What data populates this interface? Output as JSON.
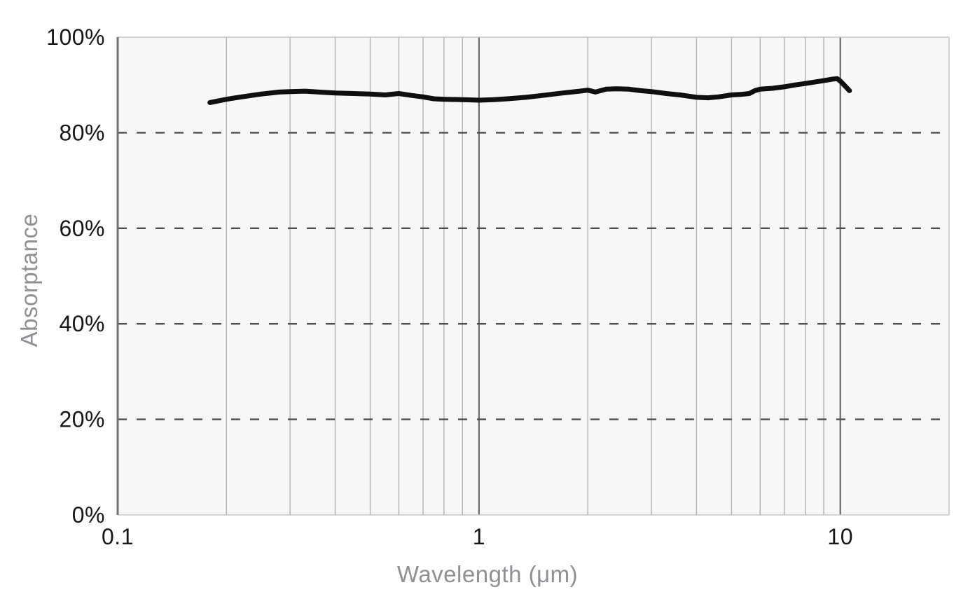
{
  "chart_data": {
    "type": "line",
    "title": "",
    "xlabel": "Wavelength (μm)",
    "ylabel": "Absorptance",
    "x_scale": "log",
    "xlim": [
      0.1,
      20
    ],
    "ylim": [
      0,
      100
    ],
    "grid": true,
    "legend": "none",
    "x_ticks": [
      {
        "value": 0.1,
        "label": "0.1"
      },
      {
        "value": 1,
        "label": "1"
      },
      {
        "value": 10,
        "label": "10"
      }
    ],
    "y_ticks": [
      {
        "value": 0,
        "label": "0%"
      },
      {
        "value": 20,
        "label": "20%"
      },
      {
        "value": 40,
        "label": "40%"
      },
      {
        "value": 60,
        "label": "60%"
      },
      {
        "value": 80,
        "label": "80%"
      },
      {
        "value": 100,
        "label": "100%"
      }
    ],
    "x_gridlines_minor": [
      0.2,
      0.3,
      0.4,
      0.5,
      0.6,
      0.7,
      0.8,
      0.9,
      2,
      3,
      4,
      5,
      6,
      7,
      8,
      9
    ],
    "x_gridlines_major": [
      1,
      10
    ],
    "y_gridlines_dashed": [
      20,
      40,
      60,
      80
    ],
    "series": [
      {
        "name": "Absorptance",
        "color": "#0f0f0f",
        "points": [
          [
            0.18,
            86.3
          ],
          [
            0.2,
            87.0
          ],
          [
            0.22,
            87.5
          ],
          [
            0.25,
            88.1
          ],
          [
            0.28,
            88.5
          ],
          [
            0.3,
            88.6
          ],
          [
            0.33,
            88.7
          ],
          [
            0.36,
            88.5
          ],
          [
            0.4,
            88.3
          ],
          [
            0.45,
            88.2
          ],
          [
            0.5,
            88.1
          ],
          [
            0.55,
            87.9
          ],
          [
            0.6,
            88.2
          ],
          [
            0.65,
            87.8
          ],
          [
            0.7,
            87.5
          ],
          [
            0.75,
            87.1
          ],
          [
            0.8,
            87.0
          ],
          [
            0.9,
            86.9
          ],
          [
            1.0,
            86.8
          ],
          [
            1.1,
            86.9
          ],
          [
            1.2,
            87.1
          ],
          [
            1.35,
            87.4
          ],
          [
            1.5,
            87.8
          ],
          [
            1.7,
            88.3
          ],
          [
            1.9,
            88.7
          ],
          [
            2.0,
            88.9
          ],
          [
            2.1,
            88.5
          ],
          [
            2.25,
            89.1
          ],
          [
            2.4,
            89.2
          ],
          [
            2.6,
            89.1
          ],
          [
            2.8,
            88.8
          ],
          [
            3.0,
            88.6
          ],
          [
            3.3,
            88.2
          ],
          [
            3.6,
            87.9
          ],
          [
            4.0,
            87.4
          ],
          [
            4.3,
            87.3
          ],
          [
            4.6,
            87.5
          ],
          [
            5.0,
            87.9
          ],
          [
            5.3,
            88.0
          ],
          [
            5.6,
            88.2
          ],
          [
            5.8,
            88.8
          ],
          [
            6.0,
            89.1
          ],
          [
            6.5,
            89.3
          ],
          [
            7.0,
            89.6
          ],
          [
            7.5,
            90.0
          ],
          [
            8.0,
            90.3
          ],
          [
            8.5,
            90.6
          ],
          [
            9.0,
            90.9
          ],
          [
            9.5,
            91.2
          ],
          [
            9.8,
            91.3
          ],
          [
            10.0,
            90.8
          ],
          [
            10.3,
            89.8
          ],
          [
            10.6,
            88.8
          ]
        ]
      }
    ],
    "colors": {
      "curve": "#0f0f0f",
      "plot_bg": "#f7f7f7",
      "grid_minor": "#b5b5b5",
      "grid_major": "#6a6a6a",
      "grid_dashed": "#4c4c4c",
      "axis_spine": "#6f6f6f",
      "border_light": "#c6c6c6",
      "tick_label": "#161616",
      "axis_title": "#8f8f94",
      "page_bg": "#ffffff"
    }
  }
}
